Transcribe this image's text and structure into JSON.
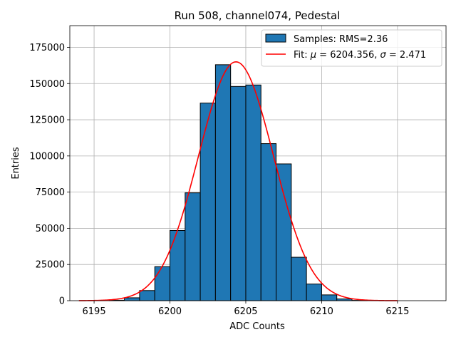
{
  "chart_data": {
    "type": "bar",
    "title": "Run 508, channel074, Pedestal",
    "xlabel": "ADC Counts",
    "ylabel": "Entries",
    "xlim": [
      6193.4,
      6218.2
    ],
    "ylim": [
      0,
      190000
    ],
    "xticks": [
      6195,
      6200,
      6205,
      6210,
      6215
    ],
    "yticks": [
      0,
      25000,
      50000,
      75000,
      100000,
      125000,
      150000,
      175000
    ],
    "grid": true,
    "legend_position": "top-right",
    "histogram": {
      "name": "Samples: RMS=2.36",
      "color": "#1f77b4",
      "bins": [
        {
          "left": 6195,
          "right": 6196,
          "value": 0
        },
        {
          "left": 6196,
          "right": 6197,
          "value": 300
        },
        {
          "left": 6197,
          "right": 6198,
          "value": 2000
        },
        {
          "left": 6198,
          "right": 6199,
          "value": 7000
        },
        {
          "left": 6199,
          "right": 6200,
          "value": 23500
        },
        {
          "left": 6200,
          "right": 6201,
          "value": 48500
        },
        {
          "left": 6201,
          "right": 6202,
          "value": 74500
        },
        {
          "left": 6202,
          "right": 6203,
          "value": 136500
        },
        {
          "left": 6203,
          "right": 6204,
          "value": 163000
        },
        {
          "left": 6204,
          "right": 6205,
          "value": 148000
        },
        {
          "left": 6205,
          "right": 6206,
          "value": 149000
        },
        {
          "left": 6206,
          "right": 6207,
          "value": 108500
        },
        {
          "left": 6207,
          "right": 6208,
          "value": 94500
        },
        {
          "left": 6208,
          "right": 6209,
          "value": 30000
        },
        {
          "left": 6209,
          "right": 6210,
          "value": 11500
        },
        {
          "left": 6210,
          "right": 6211,
          "value": 4000
        },
        {
          "left": 6211,
          "right": 6212,
          "value": 1200
        },
        {
          "left": 6212,
          "right": 6213,
          "value": 200
        }
      ]
    },
    "fit": {
      "name": "Fit: μ = 6204.356, σ = 2.471",
      "label_prefix": "Fit: ",
      "mu_symbol": "μ",
      "sigma_symbol": "σ",
      "mu_text": " = 6204.356, ",
      "sigma_text": " = 2.471",
      "color": "#ff0000",
      "mu": 6204.356,
      "sigma": 2.471,
      "amplitude": 165000,
      "x_range": [
        6194,
        6215
      ]
    }
  }
}
